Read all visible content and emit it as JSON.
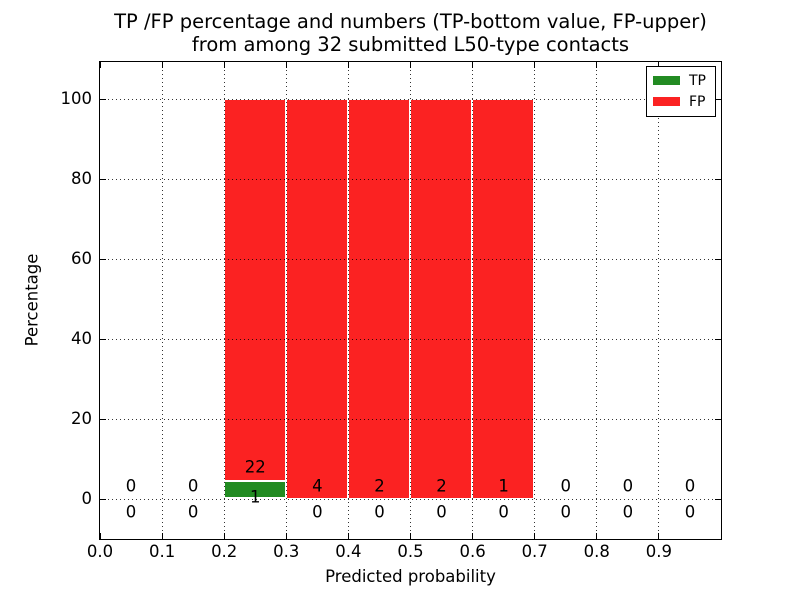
{
  "title": {
    "line1": "TP /FP percentage and numbers (TP-bottom value, FP-upper)",
    "line2": "from among 32 submitted L50-type contacts"
  },
  "axes": {
    "xlabel": "Predicted probability",
    "ylabel": "Percentage",
    "x_ticks": [
      "0.0",
      "0.1",
      "0.2",
      "0.3",
      "0.4",
      "0.5",
      "0.6",
      "0.7",
      "0.8",
      "0.9"
    ],
    "y_ticks": [
      "0",
      "20",
      "40",
      "60",
      "80",
      "100"
    ]
  },
  "chart_data": {
    "type": "bar",
    "stacked": true,
    "title": "TP /FP percentage and numbers (TP-bottom value, FP-upper) from among 32 submitted L50-type contacts",
    "xlabel": "Predicted probability",
    "ylabel": "Percentage",
    "bins": [
      [
        0.0,
        0.1
      ],
      [
        0.1,
        0.2
      ],
      [
        0.2,
        0.3
      ],
      [
        0.3,
        0.4
      ],
      [
        0.4,
        0.5
      ],
      [
        0.5,
        0.6
      ],
      [
        0.6,
        0.7
      ],
      [
        0.7,
        0.8
      ],
      [
        0.8,
        0.9
      ],
      [
        0.9,
        1.0
      ]
    ],
    "series": [
      {
        "name": "TP",
        "color": "#228b22",
        "counts": [
          0,
          0,
          1,
          0,
          0,
          0,
          0,
          0,
          0,
          0
        ],
        "percent": [
          0,
          0,
          4.3,
          0,
          0,
          0,
          0,
          0,
          0,
          0
        ]
      },
      {
        "name": "FP",
        "color": "#fb2222",
        "counts": [
          0,
          0,
          22,
          4,
          2,
          2,
          1,
          0,
          0,
          0
        ],
        "percent": [
          0,
          0,
          95.7,
          100,
          100,
          100,
          100,
          0,
          0,
          0
        ]
      }
    ],
    "total_contacts": 32,
    "xlim": [
      0,
      1
    ],
    "ylim": [
      -10,
      110
    ],
    "grid": true,
    "grid_style": "dotted",
    "legend_position": "upper right"
  }
}
